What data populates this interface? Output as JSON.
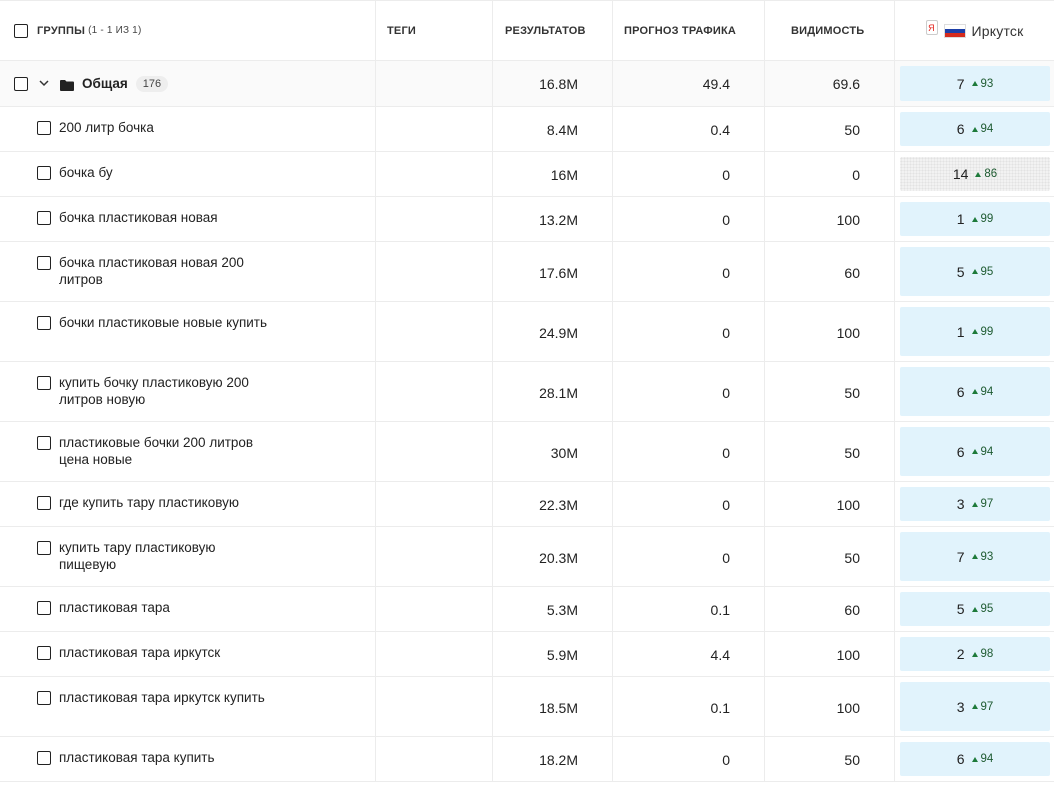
{
  "header": {
    "groups_label": "ГРУППЫ",
    "groups_count": "(1 - 1 ИЗ 1)",
    "tags_label": "ТЕГИ",
    "results_label": "РЕЗУЛЬТАТОВ",
    "traffic_label": "ПРОГНОЗ ТРАФИКА",
    "visibility_label": "ВИДИМОСТЬ",
    "region": {
      "search_engine_icon": "Я",
      "flag_colors": [
        "#ffffff",
        "#1c3fa8",
        "#d52b1e"
      ],
      "name": "Иркутск"
    }
  },
  "group": {
    "name": "Общая",
    "count": "176",
    "results": "16.8M",
    "traffic": "49.4",
    "visibility": "69.6",
    "rank": "7",
    "score": "93"
  },
  "keywords": [
    {
      "text": "200 литр бочка",
      "results": "8.4M",
      "traffic": "0.4",
      "visibility": "50",
      "rank": "6",
      "score": "94",
      "style": "blue"
    },
    {
      "text": "бочка бу",
      "results": "16M",
      "traffic": "0",
      "visibility": "0",
      "rank": "14",
      "score": "86",
      "style": "gray"
    },
    {
      "text": "бочка пластиковая новая",
      "results": "13.2M",
      "traffic": "0",
      "visibility": "100",
      "rank": "1",
      "score": "99",
      "style": "blue"
    },
    {
      "text": "бочка пластиковая новая 200 литров",
      "results": "17.6M",
      "traffic": "0",
      "visibility": "60",
      "rank": "5",
      "score": "95",
      "style": "blue"
    },
    {
      "text": "бочки пластиковые новые купить",
      "results": "24.9M",
      "traffic": "0",
      "visibility": "100",
      "rank": "1",
      "score": "99",
      "style": "blue"
    },
    {
      "text": "купить бочку пластиковую 200 литров новую",
      "results": "28.1M",
      "traffic": "0",
      "visibility": "50",
      "rank": "6",
      "score": "94",
      "style": "blue"
    },
    {
      "text": "пластиковые бочки 200 литров цена новые",
      "results": "30M",
      "traffic": "0",
      "visibility": "50",
      "rank": "6",
      "score": "94",
      "style": "blue"
    },
    {
      "text": "где купить тару пластиковую",
      "results": "22.3M",
      "traffic": "0",
      "visibility": "100",
      "rank": "3",
      "score": "97",
      "style": "blue"
    },
    {
      "text": "купить тару пластиковую пищевую",
      "results": "20.3M",
      "traffic": "0",
      "visibility": "50",
      "rank": "7",
      "score": "93",
      "style": "blue"
    },
    {
      "text": "пластиковая тара",
      "results": "5.3M",
      "traffic": "0.1",
      "visibility": "60",
      "rank": "5",
      "score": "95",
      "style": "blue"
    },
    {
      "text": "пластиковая тара иркутск",
      "results": "5.9M",
      "traffic": "4.4",
      "visibility": "100",
      "rank": "2",
      "score": "98",
      "style": "blue"
    },
    {
      "text": "пластиковая тара иркутск купить",
      "results": "18.5M",
      "traffic": "0.1",
      "visibility": "100",
      "rank": "3",
      "score": "97",
      "style": "blue"
    },
    {
      "text": "пластиковая тара купить",
      "results": "18.2M",
      "traffic": "0",
      "visibility": "50",
      "rank": "6",
      "score": "94",
      "style": "blue"
    }
  ]
}
